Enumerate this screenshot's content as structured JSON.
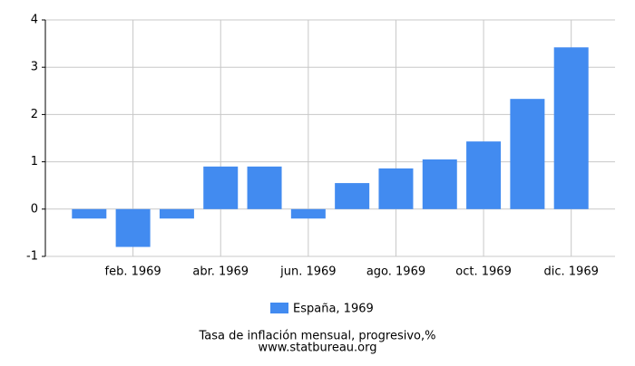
{
  "chart_data": {
    "type": "bar",
    "title": "Tasa de inflación mensual, progresivo,%",
    "source": "www.statbureau.org",
    "categories": [
      null,
      "feb. 1969",
      null,
      "abr. 1969",
      null,
      "jun. 1969",
      null,
      "ago. 1969",
      null,
      "oct. 1969",
      null,
      "dic. 1969"
    ],
    "series": [
      {
        "name": "España, 1969",
        "color": "#428bf0",
        "values": [
          -0.2,
          -0.8,
          -0.2,
          0.9,
          0.9,
          -0.2,
          0.55,
          0.86,
          1.05,
          1.43,
          2.33,
          3.42
        ]
      }
    ],
    "ylim": [
      -1,
      4
    ],
    "yticks": [
      -1,
      0,
      1,
      2,
      3,
      4
    ],
    "grid": true,
    "legend": "bottom"
  }
}
